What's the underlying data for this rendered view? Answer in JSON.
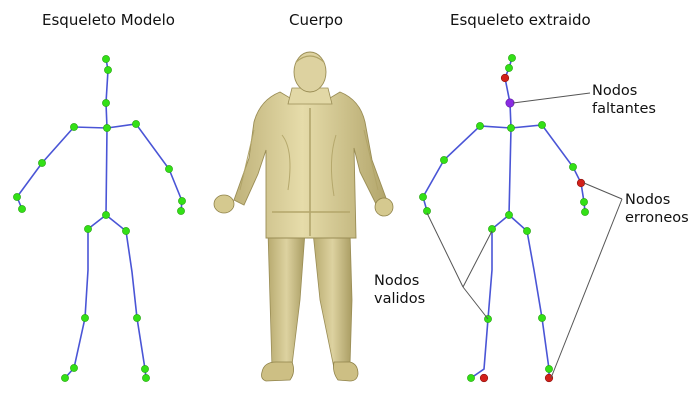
{
  "titles": {
    "model": "Esqueleto Modelo",
    "body": "Cuerpo",
    "extracted": "Esqueleto extraido"
  },
  "annotations": {
    "missing_line1": "Nodos",
    "missing_line2": "faltantes",
    "wrong_line1": "Nodos",
    "wrong_line2": "erroneos",
    "valid_line1": "Nodos",
    "valid_line2": "validos"
  },
  "colors": {
    "bone": "#4a55d6",
    "node_valid": "#33e016",
    "node_wrong": "#d2201a",
    "node_missing": "#8a2be2",
    "pointer": "#555555",
    "body_fill": "#d9cf9a",
    "body_shadow": "#a89a5e"
  }
}
